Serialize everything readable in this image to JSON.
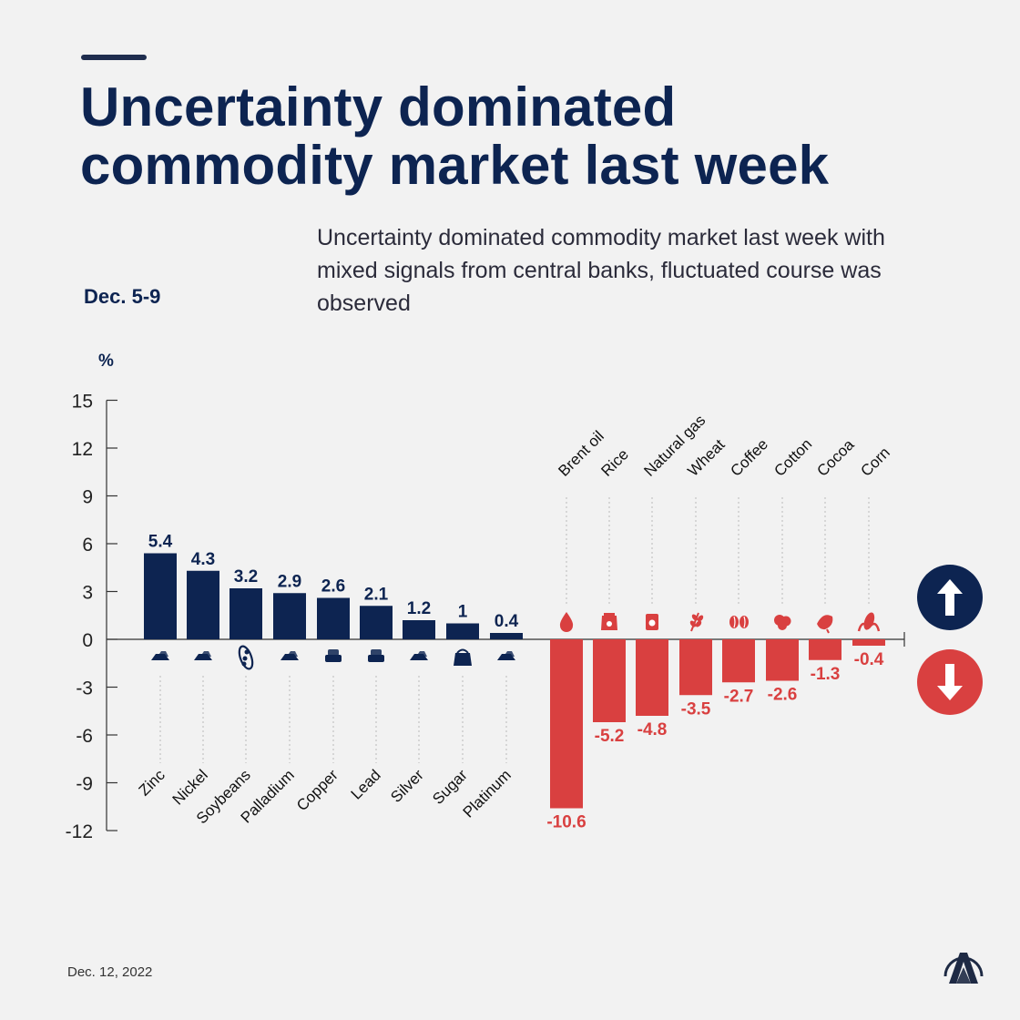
{
  "header": {
    "title_line1": "Uncertainty dominated",
    "title_line2": "commodity market last week",
    "subtitle": "Uncertainty dominated commodity market last week with mixed signals from central banks, fluctuated course was observed",
    "period": "Dec. 5-9"
  },
  "footer": {
    "date": "Dec. 12, 2022",
    "logo_text": "AA"
  },
  "legend": {
    "up_icon": "arrow-up-icon",
    "down_icon": "arrow-down-icon"
  },
  "colors": {
    "positive": "#0d2451",
    "negative": "#d94040",
    "background": "#f2f2f2"
  },
  "chart_data": {
    "type": "bar",
    "ylabel": "%",
    "ylim": [
      -12,
      15
    ],
    "yticks": [
      15,
      12,
      9,
      6,
      3,
      0,
      -3,
      -6,
      -9,
      -12
    ],
    "grid": false,
    "categories": [
      "Zinc",
      "Nickel",
      "Soybeans",
      "Palladium",
      "Copper",
      "Lead",
      "Silver",
      "Sugar",
      "Platinum",
      "Brent oil",
      "Rice",
      "Natural gas",
      "Wheat",
      "Coffee",
      "Cotton",
      "Cocoa",
      "Corn"
    ],
    "values": [
      5.4,
      4.3,
      3.2,
      2.9,
      2.6,
      2.1,
      1.2,
      1,
      0.4,
      -10.6,
      -5.2,
      -4.8,
      -3.5,
      -2.7,
      -2.6,
      -1.3,
      -0.4
    ],
    "icons": [
      "metal-icon",
      "metal-icon",
      "soybean-icon",
      "metal-icon",
      "metal-bars-icon",
      "metal-bars-icon",
      "metal-icon",
      "sugar-sack-icon",
      "metal-icon",
      "oil-drop-icon",
      "rice-sack-icon",
      "gas-canister-icon",
      "wheat-icon",
      "coffee-beans-icon",
      "cotton-icon",
      "cocoa-icon",
      "corn-icon"
    ]
  }
}
